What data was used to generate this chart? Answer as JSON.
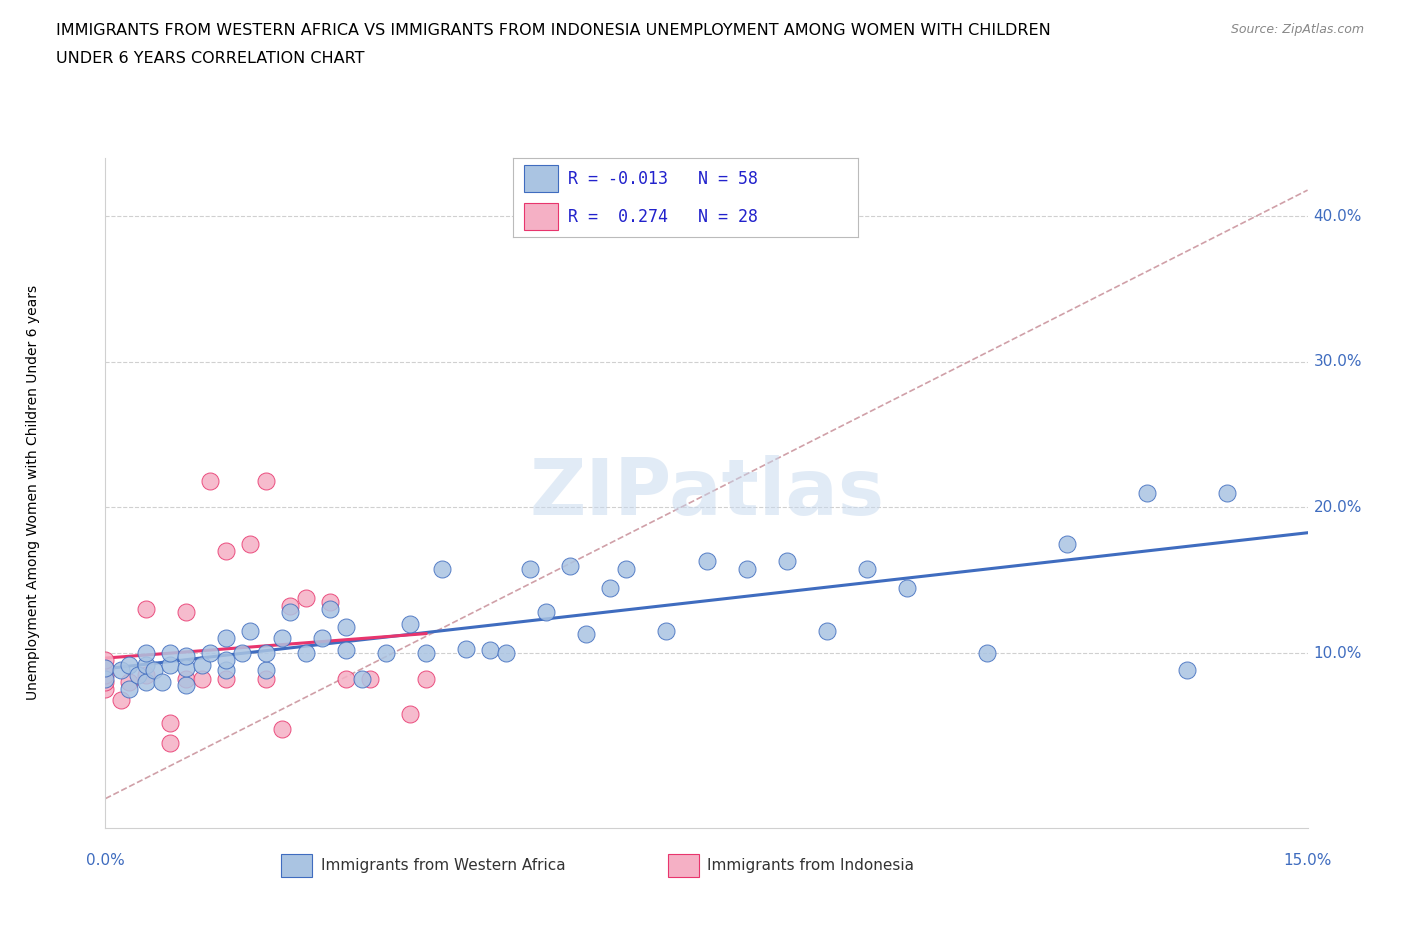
{
  "title_line1": "IMMIGRANTS FROM WESTERN AFRICA VS IMMIGRANTS FROM INDONESIA UNEMPLOYMENT AMONG WOMEN WITH CHILDREN",
  "title_line2": "UNDER 6 YEARS CORRELATION CHART",
  "source": "Source: ZipAtlas.com",
  "ylabel": "Unemployment Among Women with Children Under 6 years",
  "xlim": [
    0.0,
    0.15
  ],
  "ylim": [
    -0.02,
    0.44
  ],
  "yticks": [
    0.0,
    0.1,
    0.2,
    0.3,
    0.4
  ],
  "ytick_labels": [
    "",
    "10.0%",
    "20.0%",
    "30.0%",
    "40.0%"
  ],
  "R_western": -0.013,
  "N_western": 58,
  "R_indonesia": 0.274,
  "N_indonesia": 28,
  "color_western": "#aac4e2",
  "color_indonesia": "#f5b0c5",
  "line_western": "#3f6cbf",
  "line_indonesia": "#e8356d",
  "diagonal_color": "#d0a0a8",
  "grid_color": "#d0d0d0",
  "watermark": "ZIPatlas",
  "wa_x": [
    0.0,
    0.0,
    0.002,
    0.003,
    0.003,
    0.004,
    0.005,
    0.005,
    0.005,
    0.006,
    0.007,
    0.008,
    0.008,
    0.01,
    0.01,
    0.01,
    0.012,
    0.013,
    0.015,
    0.015,
    0.015,
    0.017,
    0.018,
    0.02,
    0.02,
    0.022,
    0.023,
    0.025,
    0.027,
    0.028,
    0.03,
    0.03,
    0.032,
    0.035,
    0.038,
    0.04,
    0.042,
    0.045,
    0.048,
    0.05,
    0.053,
    0.055,
    0.058,
    0.06,
    0.063,
    0.065,
    0.07,
    0.075,
    0.08,
    0.085,
    0.09,
    0.095,
    0.1,
    0.11,
    0.12,
    0.13,
    0.135,
    0.14
  ],
  "wa_y": [
    0.082,
    0.09,
    0.088,
    0.092,
    0.075,
    0.085,
    0.08,
    0.092,
    0.1,
    0.088,
    0.08,
    0.092,
    0.1,
    0.078,
    0.09,
    0.098,
    0.092,
    0.1,
    0.088,
    0.095,
    0.11,
    0.1,
    0.115,
    0.088,
    0.1,
    0.11,
    0.128,
    0.1,
    0.11,
    0.13,
    0.102,
    0.118,
    0.082,
    0.1,
    0.12,
    0.1,
    0.158,
    0.103,
    0.102,
    0.1,
    0.158,
    0.128,
    0.16,
    0.113,
    0.145,
    0.158,
    0.115,
    0.163,
    0.158,
    0.163,
    0.115,
    0.158,
    0.145,
    0.1,
    0.175,
    0.21,
    0.088,
    0.21
  ],
  "id_x": [
    0.0,
    0.0,
    0.0,
    0.0,
    0.0,
    0.002,
    0.003,
    0.005,
    0.005,
    0.008,
    0.008,
    0.01,
    0.01,
    0.012,
    0.013,
    0.015,
    0.015,
    0.018,
    0.02,
    0.02,
    0.022,
    0.023,
    0.025,
    0.028,
    0.03,
    0.033,
    0.038,
    0.04
  ],
  "id_y": [
    0.075,
    0.08,
    0.085,
    0.09,
    0.095,
    0.068,
    0.08,
    0.085,
    0.13,
    0.038,
    0.052,
    0.082,
    0.128,
    0.082,
    0.218,
    0.082,
    0.17,
    0.175,
    0.082,
    0.218,
    0.048,
    0.132,
    0.138,
    0.135,
    0.082,
    0.082,
    0.058,
    0.082
  ]
}
